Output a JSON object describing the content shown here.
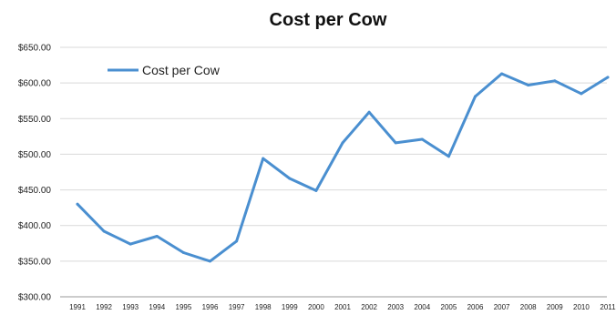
{
  "chart_data": {
    "type": "line",
    "title": "Cost per Cow",
    "xlabel": "",
    "ylabel": "",
    "x": [
      "1991",
      "1992",
      "1993",
      "1994",
      "1995",
      "1996",
      "1997",
      "1998",
      "1999",
      "2000",
      "2001",
      "2002",
      "2003",
      "2004",
      "2005",
      "2006",
      "2007",
      "2008",
      "2009",
      "2010",
      "2011"
    ],
    "series": [
      {
        "name": "Cost per Cow",
        "color": "#4a8fd0",
        "values": [
          430,
          392,
          374,
          385,
          362,
          350,
          378,
          494,
          466,
          449,
          516,
          559,
          516,
          521,
          497,
          581,
          613,
          597,
          603,
          585,
          608
        ]
      }
    ],
    "ylim": [
      300,
      650
    ],
    "yticks": [
      300,
      350,
      400,
      450,
      500,
      550,
      600,
      650
    ],
    "ytick_labels": [
      "$300.00",
      "$350.00",
      "$400.00",
      "$450.00",
      "$500.00",
      "$550.00",
      "$600.00",
      "$650.00"
    ],
    "grid": true,
    "legend_position": "top-left"
  }
}
